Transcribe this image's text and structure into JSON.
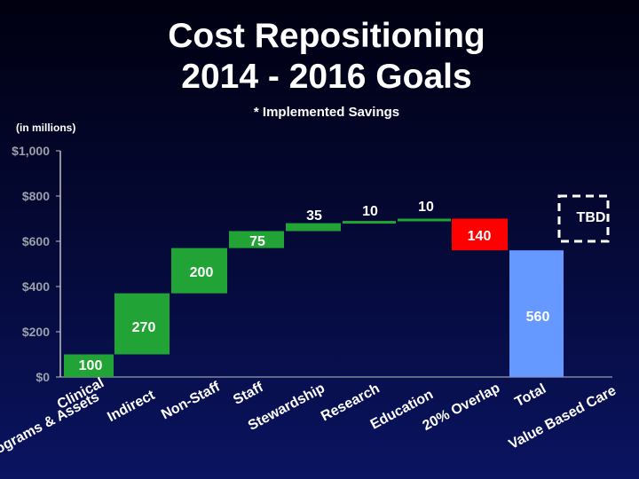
{
  "header": {
    "title_line1": "Cost Repositioning",
    "title_line2": "2014 - 2016 Goals",
    "subtitle": "* Implemented Savings",
    "units": "(in millions)"
  },
  "chart_data": {
    "type": "bar",
    "subtype": "waterfall",
    "title": "Cost Repositioning 2014 - 2016 Goals",
    "ylabel": "(in millions)",
    "ylim": [
      0,
      1000
    ],
    "yticks": [
      0,
      200,
      400,
      600,
      800,
      1000
    ],
    "ytick_labels": [
      "$0",
      "$200",
      "$400",
      "$600",
      "$800",
      "$1,000"
    ],
    "gridlines": false,
    "categories": [
      "Clinical Programs & Assets",
      "Indirect",
      "Non-Staff",
      "Staff",
      "Stewardship",
      "Research",
      "Education",
      "20% Overlap",
      "Total",
      "Value Based Care"
    ],
    "bars": [
      {
        "category": "Clinical Programs & Assets",
        "label": "100",
        "start": 0,
        "end": 100,
        "color": "#22a336"
      },
      {
        "category": "Indirect",
        "label": "270",
        "start": 100,
        "end": 370,
        "color": "#22a336"
      },
      {
        "category": "Non-Staff",
        "label": "200",
        "start": 370,
        "end": 570,
        "color": "#22a336"
      },
      {
        "category": "Staff",
        "label": "75",
        "start": 570,
        "end": 645,
        "color": "#22a336"
      },
      {
        "category": "Stewardship",
        "label": "35",
        "start": 645,
        "end": 680,
        "color": "#22a336"
      },
      {
        "category": "Research",
        "label": "10",
        "start": 680,
        "end": 690,
        "color": "#22a336"
      },
      {
        "category": "Education",
        "label": "10",
        "start": 690,
        "end": 700,
        "color": "#22a336"
      },
      {
        "category": "20% Overlap",
        "label": "140",
        "start": 560,
        "end": 700,
        "color": "#ff0000"
      },
      {
        "category": "Total",
        "label": "560",
        "start": 0,
        "end": 560,
        "color": "#6699ff"
      },
      {
        "category": "Value Based Care",
        "label": "TBD",
        "start": 600,
        "end": 800,
        "color": "none",
        "dashed": true
      }
    ],
    "x_tick_labels": [
      "Clinical",
      "Programs & Assets",
      "Indirect",
      "Non-Staff",
      "Staff",
      "Stewardship",
      "Research",
      "Education",
      "20% Overlap",
      "Total",
      "Value Based Care"
    ]
  }
}
